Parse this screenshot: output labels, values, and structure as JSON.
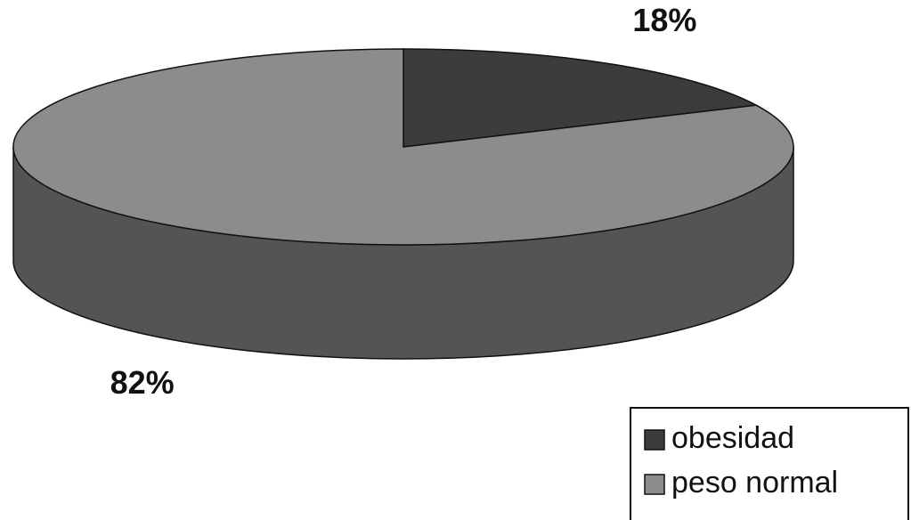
{
  "chart_data": {
    "type": "pie",
    "categories": [
      "obesidad",
      "peso normal"
    ],
    "values": [
      18,
      82
    ],
    "value_labels": [
      "18%",
      "82%"
    ],
    "colors": [
      "#3c3c3c",
      "#8c8c8c"
    ],
    "legend": "bottom-right"
  }
}
